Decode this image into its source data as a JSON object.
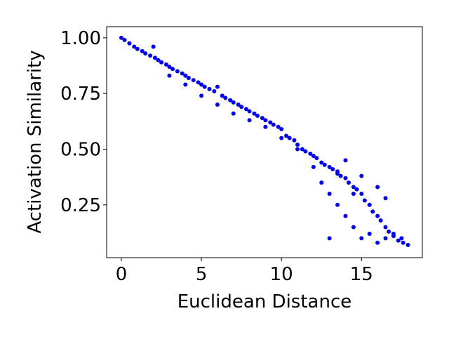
{
  "chart_data": {
    "type": "scatter",
    "xlabel": "Euclidean Distance",
    "ylabel": "Activation Similarity",
    "x": [
      0,
      0.2,
      0.5,
      0.8,
      1,
      1.3,
      1.5,
      1.8,
      2,
      2.1,
      2.3,
      2.5,
      2.8,
      3,
      3.2,
      3.5,
      3.8,
      4,
      4.2,
      4.5,
      4.8,
      5,
      5.2,
      5.5,
      5.8,
      6,
      6.3,
      6.5,
      6.8,
      7,
      7.3,
      7.5,
      7.8,
      8,
      8.3,
      8.5,
      8.8,
      9,
      9.3,
      9.5,
      9.8,
      10,
      10.3,
      10.5,
      10.8,
      11,
      11.3,
      11.5,
      11.8,
      12,
      12.2,
      12.5,
      12.7,
      13,
      13.2,
      13.5,
      13.7,
      14,
      14.2,
      14.5,
      14.7,
      15,
      15.2,
      15.5,
      15.7,
      16,
      16.2,
      16.5,
      16.7,
      17,
      17.3,
      17.6,
      17.9,
      3,
      4,
      5,
      6,
      7,
      8,
      9,
      10,
      11,
      12,
      12.5,
      13,
      13,
      13.5,
      14,
      14,
      14.5,
      15,
      15,
      15.5,
      16,
      16,
      16.5,
      17,
      13.5,
      14.5,
      15.5,
      16.5,
      17.5
    ],
    "values": [
      1.0,
      0.99,
      0.975,
      0.96,
      0.95,
      0.94,
      0.93,
      0.92,
      0.96,
      0.91,
      0.9,
      0.89,
      0.88,
      0.87,
      0.86,
      0.85,
      0.84,
      0.83,
      0.82,
      0.81,
      0.8,
      0.79,
      0.78,
      0.77,
      0.76,
      0.78,
      0.74,
      0.73,
      0.72,
      0.71,
      0.7,
      0.69,
      0.68,
      0.67,
      0.66,
      0.65,
      0.64,
      0.63,
      0.62,
      0.61,
      0.6,
      0.59,
      0.56,
      0.55,
      0.54,
      0.52,
      0.5,
      0.49,
      0.48,
      0.47,
      0.46,
      0.44,
      0.43,
      0.42,
      0.41,
      0.39,
      0.38,
      0.37,
      0.35,
      0.33,
      0.32,
      0.3,
      0.27,
      0.25,
      0.22,
      0.2,
      0.18,
      0.15,
      0.13,
      0.11,
      0.09,
      0.08,
      0.07,
      0.83,
      0.79,
      0.74,
      0.7,
      0.66,
      0.63,
      0.6,
      0.55,
      0.5,
      0.42,
      0.35,
      0.3,
      0.1,
      0.25,
      0.2,
      0.45,
      0.15,
      0.1,
      0.38,
      0.12,
      0.08,
      0.33,
      0.1,
      0.12,
      0.4,
      0.3,
      0.25,
      0.28,
      0.1
    ],
    "color": "#0000ff",
    "xlim": [
      -0.92,
      18.8
    ],
    "ylim": [
      0.013,
      1.05
    ],
    "xticks": [
      0,
      5,
      10,
      15
    ],
    "yticks": [
      {
        "value": 0.25,
        "label": "0.25"
      },
      {
        "value": 0.5,
        "label": "0.50"
      },
      {
        "value": 0.75,
        "label": "0.75"
      },
      {
        "value": 1,
        "label": "1.00"
      }
    ],
    "grid": false
  }
}
